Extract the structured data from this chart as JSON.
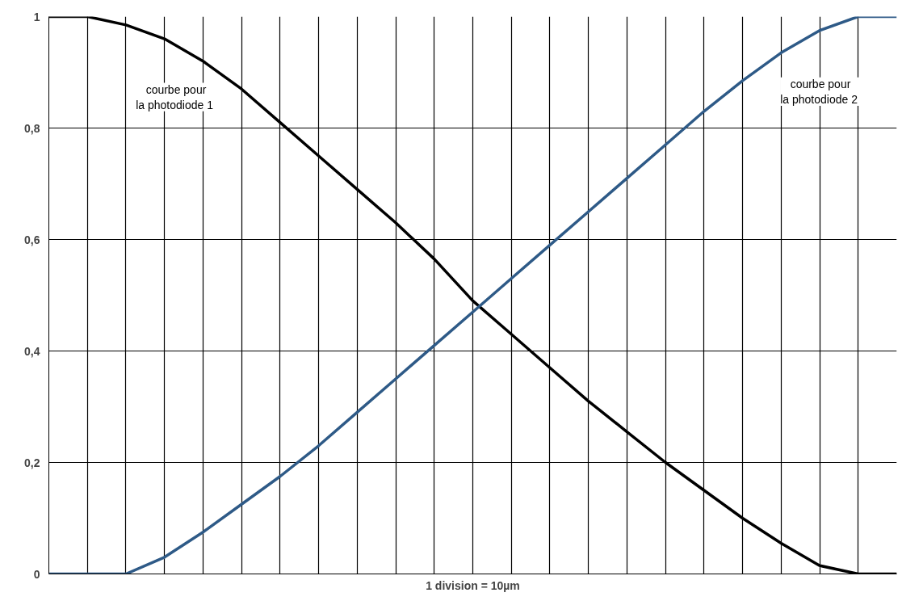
{
  "chart_data": {
    "type": "line",
    "xlabel": "1 division = 10µm",
    "categories": [
      null,
      null,
      null,
      null,
      null,
      null,
      null,
      null,
      null,
      null,
      null,
      null,
      null,
      null,
      null,
      null,
      null,
      null,
      null,
      null,
      null,
      null,
      null
    ],
    "ylim": [
      0,
      1
    ],
    "yticks": [
      {
        "value": 0,
        "label": "0"
      },
      {
        "value": 0.2,
        "label": "0,2"
      },
      {
        "value": 0.4,
        "label": "0,4"
      },
      {
        "value": 0.6,
        "label": "0,6"
      },
      {
        "value": 0.8,
        "label": "0,8"
      },
      {
        "value": 1,
        "label": "1"
      }
    ],
    "tick_labels": "y",
    "grid": true,
    "marker": "none",
    "line_style": "solid",
    "series": [
      {
        "name": "courbe pour\nla photodiode  1",
        "color": "#000000",
        "values": [
          1,
          1,
          0.985,
          0.96,
          0.92,
          0.87,
          0.81,
          0.75,
          0.69,
          0.63,
          0.565,
          0.49,
          0.43,
          0.37,
          0.31,
          0.255,
          0.2,
          0.15,
          0.1,
          0.055,
          0.015,
          0,
          0
        ]
      },
      {
        "name": "courbe pour\nla photodiode  2",
        "color": "#2e5a87",
        "values": [
          0,
          0,
          0,
          0.03,
          0.075,
          0.125,
          0.175,
          0.23,
          0.29,
          0.35,
          0.41,
          0.47,
          0.53,
          0.59,
          0.65,
          0.71,
          0.77,
          0.83,
          0.885,
          0.935,
          0.975,
          1,
          1
        ]
      }
    ]
  }
}
